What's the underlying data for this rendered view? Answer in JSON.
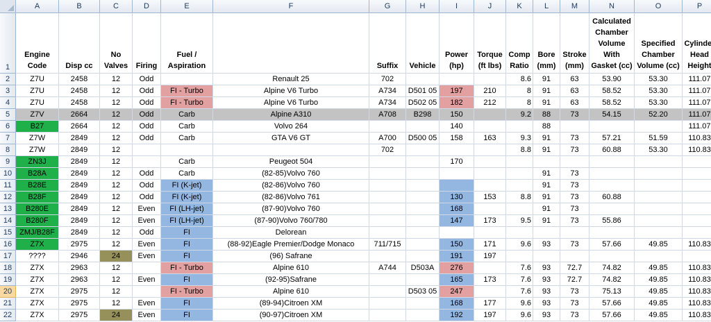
{
  "columns": [
    "A",
    "B",
    "C",
    "D",
    "E",
    "F",
    "G",
    "H",
    "I",
    "J",
    "K",
    "L",
    "M",
    "N",
    "O",
    "P"
  ],
  "header_row": {
    "row_number": "1",
    "cells": [
      "Engine Code",
      "Disp cc",
      "No Valves",
      "Firing",
      "Fuel / Aspiration",
      "",
      "Suffix",
      "Vehicle",
      "Power (hp)",
      "Torque (ft lbs)",
      "Comp Ratio",
      "Bore (mm)",
      "Stroke (mm)",
      "Calculated Chamber Volume With Gasket (cc)",
      "Specified Chamber Volume (cc)",
      "Cylinder Head Height"
    ]
  },
  "rows": [
    {
      "n": "2",
      "cells": [
        "Z7U",
        "2458",
        "12",
        "Odd",
        "",
        "Renault 25",
        "702",
        "",
        "",
        "",
        "8.6",
        "91",
        "63",
        "53.90",
        "53.30",
        "111.07"
      ],
      "fill": {}
    },
    {
      "n": "3",
      "cells": [
        "Z7U",
        "2458",
        "12",
        "Odd",
        "FI - Turbo",
        "Alpine V6 Turbo",
        "A734",
        "D501 05",
        "197",
        "210",
        "8",
        "91",
        "63",
        "58.52",
        "53.30",
        "111.07"
      ],
      "fill": {
        "4": "red",
        "8": "red"
      }
    },
    {
      "n": "4",
      "cells": [
        "Z7U",
        "2458",
        "12",
        "Odd",
        "FI - Turbo",
        "Alpine V6 Turbo",
        "A734",
        "D502 05",
        "182",
        "212",
        "8",
        "91",
        "63",
        "58.52",
        "53.30",
        "111.07"
      ],
      "fill": {
        "4": "red",
        "8": "red"
      }
    },
    {
      "n": "5",
      "cells": [
        "Z7V",
        "2664",
        "12",
        "Odd",
        "Carb",
        "Alpine A310",
        "A708",
        "B298",
        "150",
        "",
        "9.2",
        "88",
        "73",
        "54.15",
        "52.20",
        "111.07"
      ],
      "fill": {},
      "row_fill": "grey"
    },
    {
      "n": "6",
      "cells": [
        "B27",
        "2664",
        "12",
        "Odd",
        "Carb",
        "Volvo 264",
        "",
        "",
        "140",
        "",
        "",
        "88",
        "",
        "",
        "",
        "111.07"
      ],
      "fill": {
        "0": "green"
      }
    },
    {
      "n": "7",
      "cells": [
        "Z7W",
        "2849",
        "12",
        "Odd",
        "Carb",
        "GTA V6 GT",
        "A700",
        "D500 05",
        "158",
        "163",
        "9.3",
        "91",
        "73",
        "57.21",
        "51.59",
        "110.83"
      ],
      "fill": {}
    },
    {
      "n": "8",
      "cells": [
        "Z7W",
        "2849",
        "12",
        "",
        "",
        "",
        "702",
        "",
        "",
        "",
        "8.8",
        "91",
        "73",
        "60.88",
        "53.30",
        "110.83"
      ],
      "fill": {}
    },
    {
      "n": "9",
      "cells": [
        "ZN3J",
        "2849",
        "12",
        "",
        "Carb",
        "Peugeot 504",
        "",
        "",
        "170",
        "",
        "",
        "",
        "",
        "",
        "",
        ""
      ],
      "fill": {
        "0": "green"
      }
    },
    {
      "n": "10",
      "cells": [
        "B28A",
        "2849",
        "12",
        "Odd",
        "Carb",
        "(82-85)Volvo 760",
        "",
        "",
        "",
        "",
        "",
        "91",
        "73",
        "",
        "",
        ""
      ],
      "fill": {
        "0": "green"
      }
    },
    {
      "n": "11",
      "cells": [
        "B28E",
        "2849",
        "12",
        "Odd",
        "FI (K-jet)",
        "(82-86)Volvo 760",
        "",
        "",
        "",
        "",
        "",
        "91",
        "73",
        "",
        "",
        ""
      ],
      "fill": {
        "0": "green",
        "4": "blue",
        "8": "blue"
      }
    },
    {
      "n": "12",
      "cells": [
        "B28F",
        "2849",
        "12",
        "Odd",
        "FI (K-jet)",
        "(82-86)Volvo 761",
        "",
        "",
        "130",
        "153",
        "8.8",
        "91",
        "73",
        "60.88",
        "",
        ""
      ],
      "fill": {
        "0": "green",
        "4": "blue",
        "8": "blue"
      }
    },
    {
      "n": "13",
      "cells": [
        "B280E",
        "2849",
        "12",
        "Even",
        "FI (LH-jet)",
        "(87-90)Volvo 760",
        "",
        "",
        "168",
        "",
        "",
        "91",
        "73",
        "",
        "",
        ""
      ],
      "fill": {
        "0": "green",
        "4": "blue",
        "8": "blue"
      }
    },
    {
      "n": "14",
      "cells": [
        "B280F",
        "2849",
        "12",
        "Even",
        "FI (LH-jet)",
        "(87-90)Volvo 760/780",
        "",
        "",
        "147",
        "173",
        "9.5",
        "91",
        "73",
        "55.86",
        "",
        ""
      ],
      "fill": {
        "0": "green",
        "4": "blue",
        "8": "blue"
      }
    },
    {
      "n": "15",
      "cells": [
        "ZMJ/B28F",
        "2849",
        "12",
        "Odd",
        "FI",
        "Delorean",
        "",
        "",
        "",
        "",
        "",
        "",
        "",
        "",
        "",
        ""
      ],
      "fill": {
        "0": "green",
        "4": "blue"
      }
    },
    {
      "n": "16",
      "cells": [
        "Z7X",
        "2975",
        "12",
        "Even",
        "FI",
        "(88-92)Eagle Premier/Dodge Monaco",
        "711/715",
        "",
        "150",
        "171",
        "9.6",
        "93",
        "73",
        "57.66",
        "49.85",
        "110.83"
      ],
      "fill": {
        "0": "green",
        "4": "blue",
        "8": "blue"
      }
    },
    {
      "n": "17",
      "cells": [
        "????",
        "2946",
        "24",
        "Even",
        "FI",
        "(96) Safrane",
        "",
        "",
        "191",
        "197",
        "",
        "",
        "",
        "",
        "",
        ""
      ],
      "fill": {
        "2": "olive",
        "4": "blue",
        "8": "blue"
      }
    },
    {
      "n": "18",
      "cells": [
        "Z7X",
        "2963",
        "12",
        "",
        "FI - Turbo",
        "Alpine 610",
        "A744",
        "D503A",
        "276",
        "",
        "7.6",
        "93",
        "72.7",
        "74.82",
        "49.85",
        "110.83"
      ],
      "fill": {
        "4": "red",
        "8": "red"
      }
    },
    {
      "n": "19",
      "cells": [
        "Z7X",
        "2963",
        "12",
        "Even",
        "FI",
        "(92-95)Safrane",
        "",
        "",
        "165",
        "173",
        "7.6",
        "93",
        "72.7",
        "74.82",
        "49.85",
        "110.83"
      ],
      "fill": {
        "4": "blue",
        "8": "blue"
      }
    },
    {
      "n": "20",
      "cells": [
        "Z7X",
        "2975",
        "12",
        "",
        "FI - Turbo",
        "Alpine 610",
        "",
        "D503 05",
        "247",
        "",
        "7.6",
        "93",
        "73",
        "75.13",
        "49.85",
        "110.83"
      ],
      "fill": {
        "4": "red",
        "8": "red"
      },
      "selected": true
    },
    {
      "n": "21",
      "cells": [
        "Z7X",
        "2975",
        "12",
        "Even",
        "FI",
        "(89-94)Citroen XM",
        "",
        "",
        "168",
        "177",
        "9.6",
        "93",
        "73",
        "57.66",
        "49.85",
        "110.83"
      ],
      "fill": {
        "4": "blue",
        "8": "blue"
      }
    },
    {
      "n": "22",
      "cells": [
        "Z7X",
        "2975",
        "24",
        "Even",
        "FI",
        "(90-97)Citroen XM",
        "",
        "",
        "192",
        "197",
        "9.6",
        "93",
        "73",
        "57.66",
        "49.85",
        "110.83"
      ],
      "fill": {
        "2": "olive",
        "4": "blue",
        "8": "blue"
      }
    }
  ]
}
